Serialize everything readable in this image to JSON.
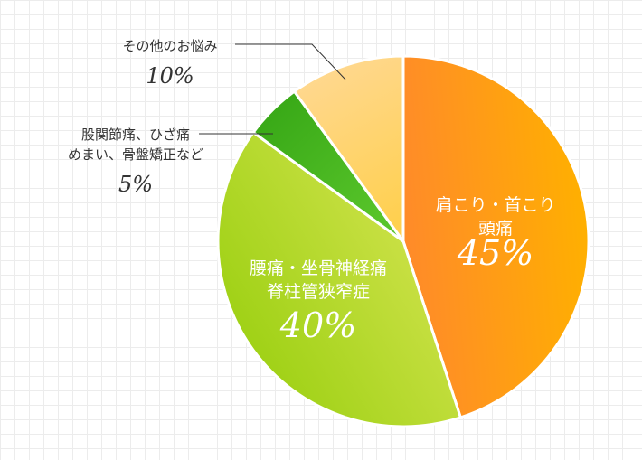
{
  "chart_data": {
    "type": "pie",
    "slices": [
      {
        "label_lines": [
          "肩こり・首こり",
          "頭痛"
        ],
        "value": 45,
        "percent_label": "45%",
        "color_start": "#ff8a2a",
        "color_end": "#ffb000"
      },
      {
        "label_lines": [
          "腰痛・坐骨神経痛",
          "脊柱管狭窄症"
        ],
        "value": 40,
        "percent_label": "40%",
        "color_start": "#d4e450",
        "color_end": "#9cd012"
      },
      {
        "label_lines": [
          "股関節痛、ひざ痛",
          "めまい、骨盤矯正など"
        ],
        "value": 5,
        "percent_label": "5%",
        "color_start": "#58c42a",
        "color_end": "#3aaa18"
      },
      {
        "label_lines": [
          "その他のお悩み"
        ],
        "value": 10,
        "percent_label": "10%",
        "color_start": "#ffd050",
        "color_end": "#ffd890"
      }
    ]
  }
}
